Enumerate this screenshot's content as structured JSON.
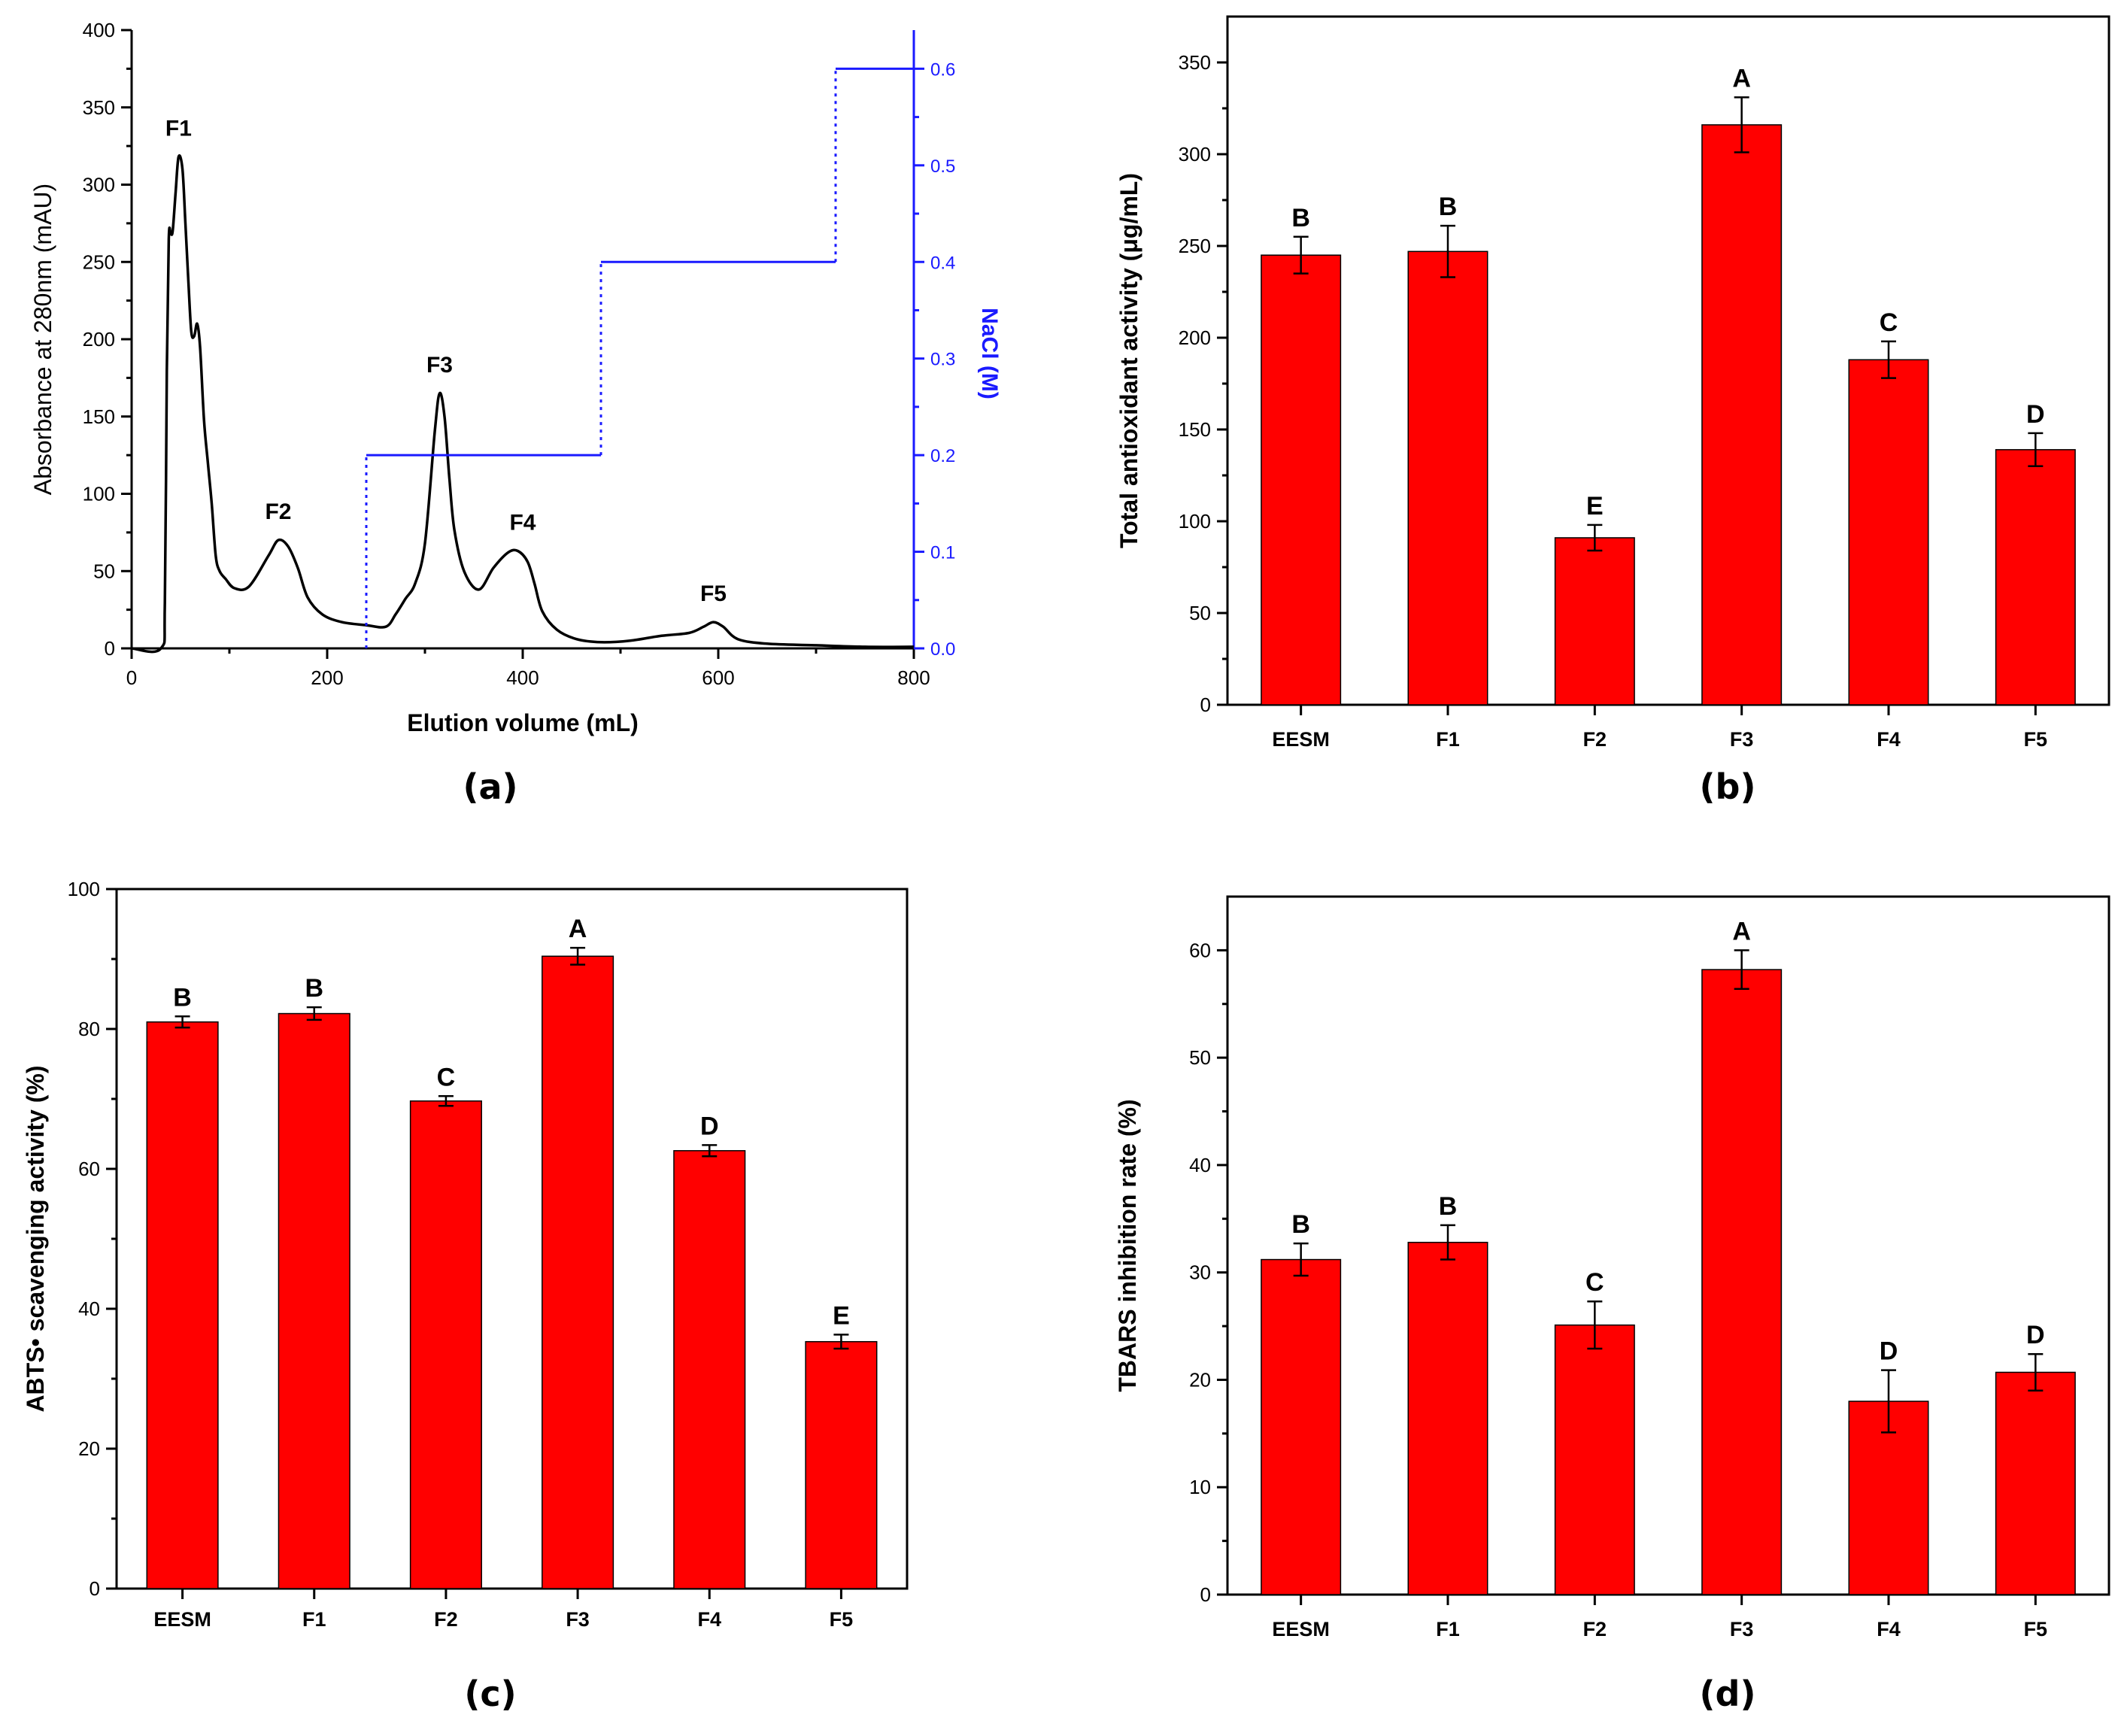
{
  "colors": {
    "bar": "#ff0000",
    "salt": "#1a1aff",
    "axis": "#000000"
  },
  "chart_data": [
    {
      "panel": "(a)",
      "type": "line",
      "xlabel": "Elution volume (mL)",
      "ylabel": "Absorbance at 280nm (mAU)",
      "y2label": "NaCl (M)",
      "xlim": [
        0,
        800
      ],
      "ylim": [
        0,
        400
      ],
      "y2lim": [
        0,
        0.64
      ],
      "xticks": [
        0,
        200,
        400,
        600,
        800
      ],
      "yticks": [
        0,
        50,
        100,
        150,
        200,
        250,
        300,
        350,
        400
      ],
      "y2ticks": [
        0.0,
        0.1,
        0.2,
        0.3,
        0.4,
        0.5,
        0.6
      ],
      "series": [
        {
          "name": "Absorbance",
          "x": [
            0,
            30,
            34,
            36,
            38,
            40,
            42,
            45,
            48,
            52,
            55,
            58,
            61,
            64,
            67,
            70,
            74,
            78,
            82,
            86,
            90,
            96,
            105,
            120,
            140,
            150,
            160,
            170,
            180,
            195,
            215,
            240,
            260,
            270,
            280,
            290,
            300,
            310,
            315,
            320,
            325,
            330,
            340,
            355,
            370,
            385,
            395,
            405,
            412,
            420,
            435,
            455,
            480,
            510,
            540,
            570,
            585,
            595,
            605,
            620,
            650,
            700,
            750,
            800
          ],
          "values": [
            0,
            0,
            30,
            180,
            265,
            268,
            270,
            295,
            318,
            310,
            275,
            238,
            205,
            202,
            210,
            195,
            148,
            120,
            93,
            60,
            50,
            45,
            39,
            40,
            60,
            70,
            66,
            52,
            33,
            22,
            17,
            15,
            14,
            22,
            32,
            42,
            68,
            140,
            165,
            150,
            110,
            77,
            50,
            38,
            52,
            62,
            63,
            56,
            42,
            24,
            12,
            6,
            4,
            5,
            8,
            10,
            14,
            17,
            14,
            6,
            3,
            2,
            1,
            1
          ]
        },
        {
          "name": "NaCl gradient",
          "x": [
            240,
            240,
            480,
            480,
            720,
            720,
            800
          ],
          "values": [
            0,
            0.2,
            0.2,
            0.4,
            0.4,
            0.6,
            0.6
          ]
        }
      ],
      "peaks": [
        {
          "label": "F1",
          "x": 48,
          "y": 318
        },
        {
          "label": "F2",
          "x": 150,
          "y": 70
        },
        {
          "label": "F3",
          "x": 315,
          "y": 165
        },
        {
          "label": "F4",
          "x": 400,
          "y": 63
        },
        {
          "label": "F5",
          "x": 595,
          "y": 17
        }
      ]
    },
    {
      "panel": "(b)",
      "type": "bar",
      "categories": [
        "EESM",
        "F1",
        "F2",
        "F3",
        "F4",
        "F5"
      ],
      "values": [
        245,
        247,
        91,
        316,
        188,
        139
      ],
      "errors": [
        10,
        14,
        7,
        15,
        10,
        9
      ],
      "letters": [
        "B",
        "B",
        "E",
        "A",
        "C",
        "D"
      ],
      "ylabel": "Total antioxidant activity (μg/mL)",
      "ylim": [
        0,
        375
      ],
      "yticks": [
        0,
        50,
        100,
        150,
        200,
        250,
        300,
        350
      ]
    },
    {
      "panel": "(c)",
      "type": "bar",
      "categories": [
        "EESM",
        "F1",
        "F2",
        "F3",
        "F4",
        "F5"
      ],
      "values": [
        81,
        82.2,
        69.7,
        90.4,
        62.6,
        35.3
      ],
      "errors": [
        0.8,
        0.9,
        0.7,
        1.2,
        0.8,
        1.0
      ],
      "letters": [
        "B",
        "B",
        "C",
        "A",
        "D",
        "E"
      ],
      "ylabel": "ABTS• scavenging activity (%)",
      "ylim": [
        0,
        100
      ],
      "yticks": [
        0,
        20,
        40,
        60,
        80,
        100
      ]
    },
    {
      "panel": "(d)",
      "type": "bar",
      "categories": [
        "EESM",
        "F1",
        "F2",
        "F3",
        "F4",
        "F5"
      ],
      "values": [
        31.2,
        32.8,
        25.1,
        58.2,
        18.0,
        20.7
      ],
      "errors": [
        1.5,
        1.6,
        2.2,
        1.8,
        2.9,
        1.7
      ],
      "letters": [
        "B",
        "B",
        "C",
        "A",
        "D",
        "D"
      ],
      "ylabel": "TBARS inhibition rate (%)",
      "ylim": [
        0,
        65
      ],
      "yticks": [
        0,
        10,
        20,
        30,
        40,
        50,
        60
      ]
    }
  ]
}
